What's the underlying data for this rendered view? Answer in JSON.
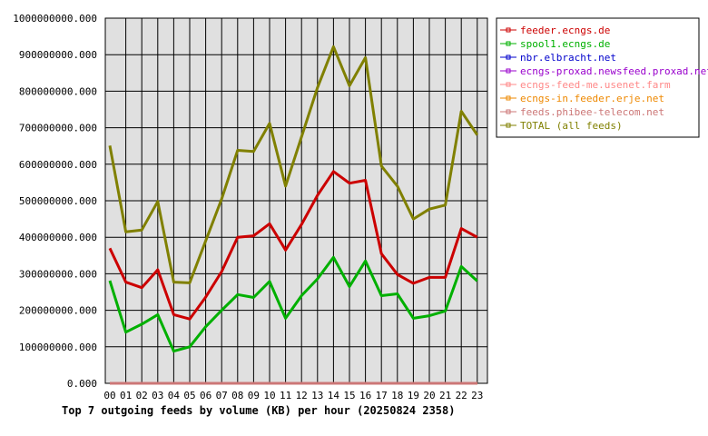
{
  "chart_data": {
    "type": "line",
    "title": "Top 7 outgoing feeds by volume (KB) per hour (20250824 2358)",
    "xlabel": "",
    "ylabel": "",
    "categories": [
      "00",
      "01",
      "02",
      "03",
      "04",
      "05",
      "06",
      "07",
      "08",
      "09",
      "10",
      "11",
      "12",
      "13",
      "14",
      "15",
      "16",
      "17",
      "18",
      "19",
      "20",
      "21",
      "22",
      "23"
    ],
    "y_ticks": [
      "0.000",
      "100000000.000",
      "200000000.000",
      "300000000.000",
      "400000000.000",
      "500000000.000",
      "600000000.000",
      "700000000.000",
      "800000000.000",
      "900000000.000",
      "1000000000.000"
    ],
    "ylim": [
      0,
      1000000000
    ],
    "grid": true,
    "legend_position": "top-right",
    "series": [
      {
        "name": "feeder.ecngs.de",
        "color": "#cc0000",
        "values": [
          370000000,
          277000000,
          262000000,
          311000000,
          188000000,
          176000000,
          236000000,
          306000000,
          400000000,
          404000000,
          437000000,
          365000000,
          435000000,
          515000000,
          580000000,
          548000000,
          556000000,
          355000000,
          298000000,
          274000000,
          290000000,
          290000000,
          424000000,
          400000000
        ]
      },
      {
        "name": "spool1.ecngs.de",
        "color": "#00b000",
        "values": [
          281000000,
          140000000,
          162000000,
          188000000,
          88000000,
          100000000,
          155000000,
          200000000,
          243000000,
          235000000,
          279000000,
          178000000,
          240000000,
          286000000,
          345000000,
          265000000,
          335000000,
          240000000,
          245000000,
          178000000,
          185000000,
          198000000,
          320000000,
          280000000
        ]
      },
      {
        "name": "nbr.elbracht.net",
        "color": "#0000cc",
        "values": [
          0,
          0,
          0,
          0,
          0,
          0,
          0,
          0,
          0,
          0,
          0,
          0,
          0,
          0,
          0,
          0,
          0,
          0,
          0,
          0,
          0,
          0,
          0,
          0
        ]
      },
      {
        "name": "ecngs-proxad.newsfeed.proxad.net",
        "color": "#9900cc",
        "values": [
          0,
          0,
          0,
          0,
          0,
          0,
          0,
          0,
          0,
          0,
          0,
          0,
          0,
          0,
          0,
          0,
          0,
          0,
          0,
          0,
          0,
          0,
          0,
          0
        ]
      },
      {
        "name": "ecngs-feed-me.usenet.farm",
        "color": "#ff8888",
        "values": [
          0,
          0,
          0,
          0,
          0,
          0,
          0,
          0,
          0,
          0,
          0,
          0,
          0,
          0,
          0,
          0,
          0,
          0,
          0,
          0,
          0,
          0,
          0,
          0
        ]
      },
      {
        "name": "ecngs-in.feeder.erje.net",
        "color": "#ee8800",
        "values": [
          0,
          0,
          0,
          0,
          0,
          0,
          0,
          0,
          0,
          0,
          0,
          0,
          0,
          0,
          0,
          0,
          0,
          0,
          0,
          0,
          0,
          0,
          0,
          0
        ]
      },
      {
        "name": "feeds.phibee-telecom.net",
        "color": "#cc7777",
        "values": [
          0,
          0,
          0,
          0,
          0,
          0,
          0,
          0,
          0,
          0,
          0,
          0,
          0,
          0,
          0,
          0,
          0,
          0,
          0,
          0,
          0,
          0,
          0,
          0
        ]
      },
      {
        "name": "TOTAL (all feeds)",
        "color": "#808000",
        "values": [
          651000000,
          415000000,
          420000000,
          498000000,
          277000000,
          275000000,
          390000000,
          505000000,
          638000000,
          635000000,
          712000000,
          540000000,
          675000000,
          810000000,
          922000000,
          815000000,
          892000000,
          595000000,
          540000000,
          450000000,
          477000000,
          488000000,
          745000000,
          680000000
        ]
      }
    ]
  }
}
